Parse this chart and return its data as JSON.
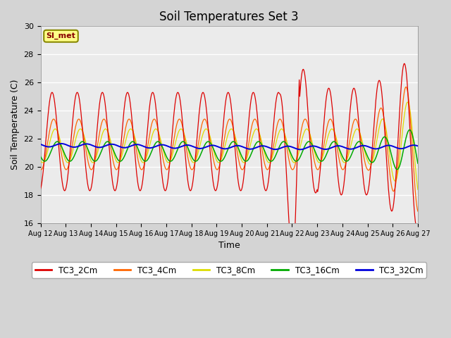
{
  "title": "Soil Temperatures Set 3",
  "xlabel": "Time",
  "ylabel": "Soil Temperature (C)",
  "ylim": [
    16,
    30
  ],
  "background_color": "#f0f0f0",
  "plot_bg_color": "#f0f0f0",
  "annotation_text": "SI_met",
  "annotation_bg": "#ffff88",
  "annotation_border": "#888800",
  "legend_labels": [
    "TC3_2Cm",
    "TC3_4Cm",
    "TC3_8Cm",
    "TC3_16Cm",
    "TC3_32Cm"
  ],
  "legend_colors": [
    "#dd0000",
    "#ff6600",
    "#dddd00",
    "#00aa00",
    "#0000dd"
  ],
  "xtick_labels": [
    "Aug 12",
    "Aug 13",
    "Aug 14",
    "Aug 15",
    "Aug 16",
    "Aug 17",
    "Aug 18",
    "Aug 19",
    "Aug 20",
    "Aug 21",
    "Aug 22",
    "Aug 23",
    "Aug 24",
    "Aug 25",
    "Aug 26",
    "Aug 27"
  ],
  "days": 15,
  "yticks": [
    16,
    18,
    20,
    22,
    24,
    26,
    28,
    30
  ]
}
